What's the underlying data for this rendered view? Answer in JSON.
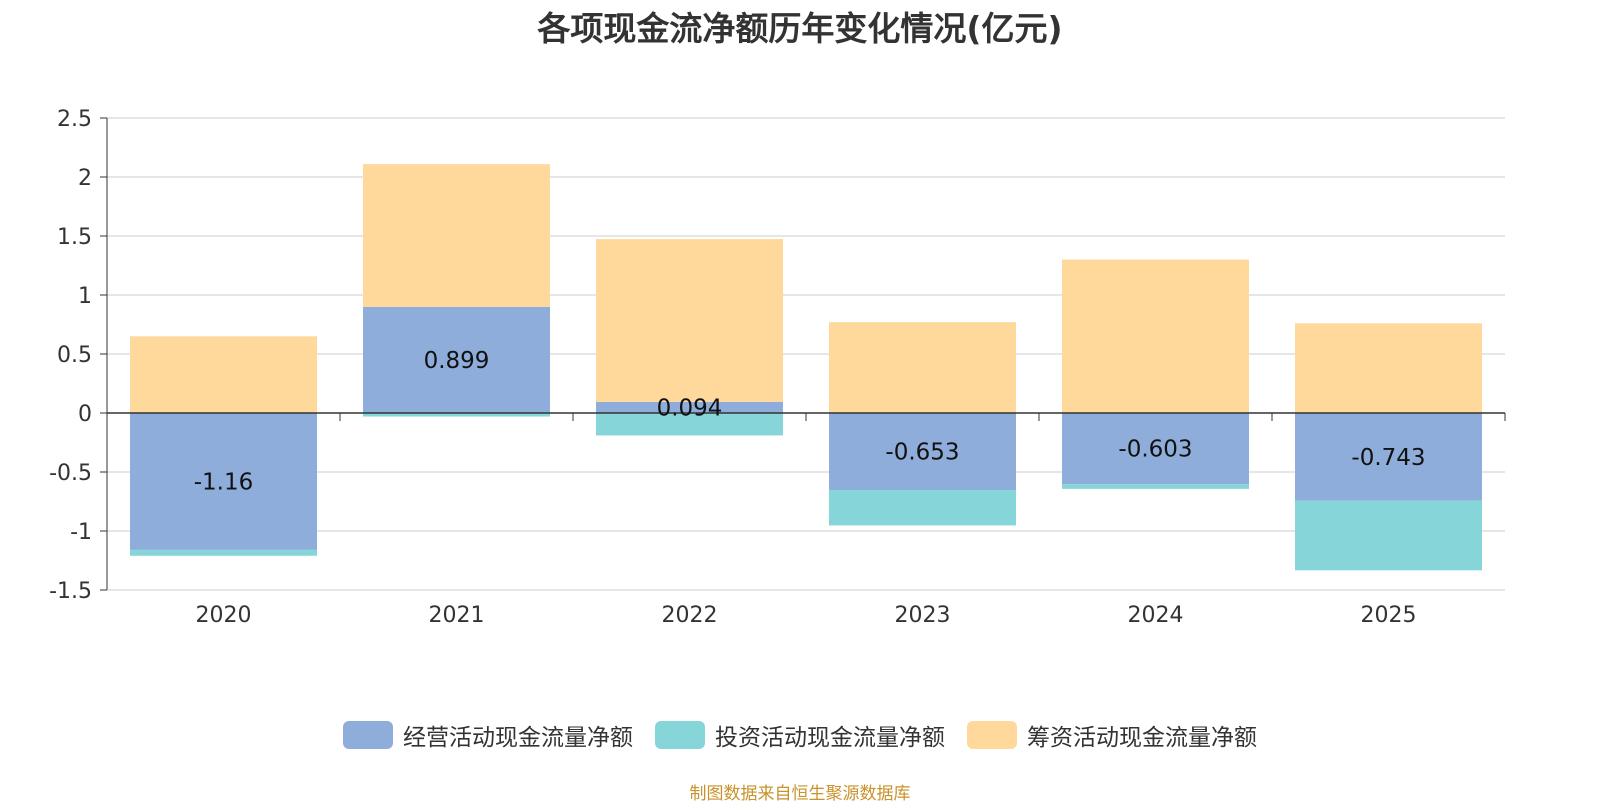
{
  "colors": {
    "operating": "#8eaddb",
    "investing": "#86d5d8",
    "financing": "#fed99b",
    "source": "#c9922a",
    "axis": "#333333",
    "grid": "#cccccc"
  },
  "chart_data": {
    "type": "bar",
    "stacked": true,
    "title": "各项现金流净额历年变化情况(亿元)",
    "categories": [
      "2020",
      "2021",
      "2022",
      "2023",
      "2024",
      "2025"
    ],
    "series": [
      {
        "name": "经营活动现金流量净额",
        "key": "operating",
        "values": [
          -1.16,
          0.899,
          0.094,
          -0.653,
          -0.603,
          -0.743
        ],
        "labels": [
          "-1.16",
          "0.899",
          "0.094",
          "-0.653",
          "-0.603",
          "-0.743"
        ]
      },
      {
        "name": "投资活动现金流量净额",
        "key": "investing",
        "values": [
          -0.05,
          -0.03,
          -0.19,
          -0.3,
          -0.04,
          -0.59
        ]
      },
      {
        "name": "筹资活动现金流量净额",
        "key": "financing",
        "values": [
          0.65,
          1.21,
          1.38,
          0.77,
          1.3,
          0.76
        ]
      }
    ],
    "ylim": [
      -1.5,
      2.5
    ],
    "yticks": [
      "2.5",
      "2",
      "1.5",
      "1",
      "0.5",
      "0",
      "-0.5",
      "-1",
      "-1.5"
    ],
    "legend_position": "bottom",
    "grid": true
  },
  "source": "制图数据来自恒生聚源数据库"
}
